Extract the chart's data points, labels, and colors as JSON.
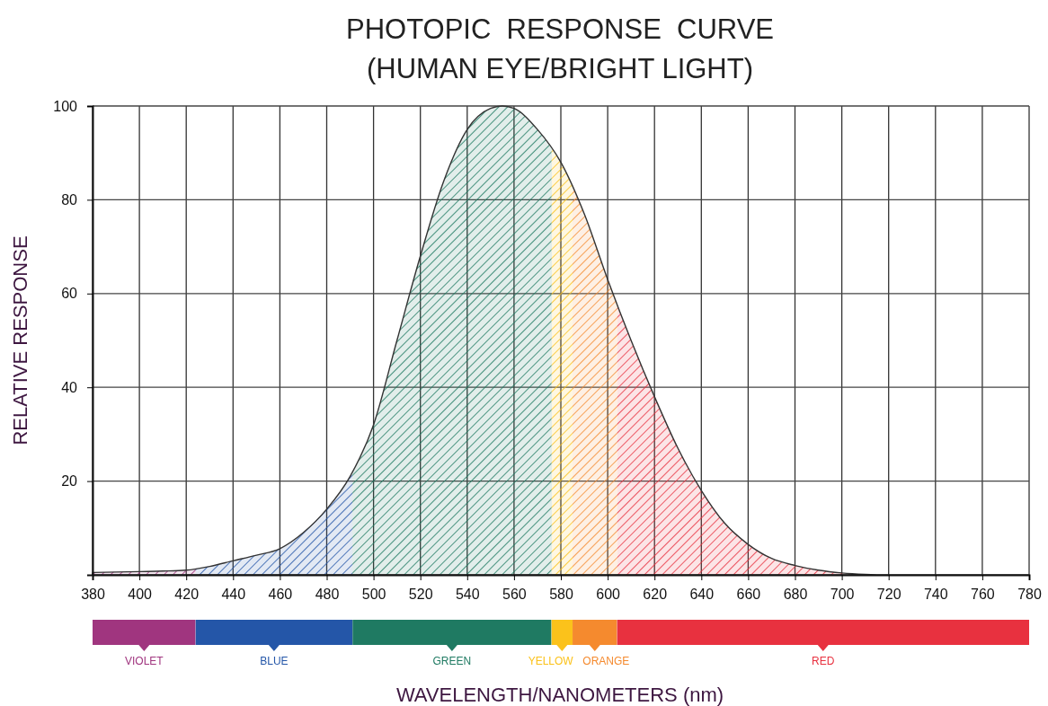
{
  "chart_data": {
    "type": "area",
    "title": "PHOTOPIC  RESPONSE  CURVE",
    "subtitle": "(HUMAN EYE/BRIGHT LIGHT)",
    "xlabel": "WAVELENGTH/NANOMETERS (nm)",
    "ylabel": "RELATIVE RESPONSE",
    "x": [
      380,
      390,
      400,
      410,
      420,
      430,
      440,
      450,
      460,
      470,
      480,
      490,
      500,
      510,
      520,
      530,
      540,
      550,
      555,
      560,
      570,
      580,
      590,
      600,
      610,
      620,
      630,
      640,
      650,
      660,
      670,
      680,
      690,
      700,
      710,
      720,
      740,
      760,
      780
    ],
    "series": [
      {
        "color": "#333333",
        "values": [
          0.5,
          0.6,
          0.7,
          0.8,
          1,
          1.8,
          3,
          4.2,
          5.6,
          9,
          14,
          21,
          32,
          50,
          68,
          84,
          95,
          99.5,
          100,
          99.5,
          95,
          88,
          77,
          63,
          50,
          38,
          27,
          18,
          11,
          6.5,
          3.5,
          2,
          1,
          0.4,
          0.1,
          0,
          0,
          0,
          0
        ]
      }
    ],
    "xlim": [
      380,
      780
    ],
    "xticks": [
      380,
      400,
      420,
      440,
      460,
      480,
      500,
      520,
      540,
      560,
      580,
      600,
      620,
      640,
      660,
      680,
      700,
      720,
      740,
      760,
      780
    ],
    "ylim": [
      0,
      100
    ],
    "yticks": [
      20,
      40,
      60,
      80,
      100
    ],
    "grid": true,
    "marker": "none",
    "line_style": "solid",
    "bands": [
      {
        "axis": "x",
        "from": 380,
        "to": 424,
        "label": "VIOLET",
        "color": "#a0357f"
      },
      {
        "axis": "x",
        "from": 424,
        "to": 491,
        "label": "BLUE",
        "color": "#2456a8"
      },
      {
        "axis": "x",
        "from": 491,
        "to": 576,
        "label": "GREEN",
        "color": "#1f7a62"
      },
      {
        "axis": "x",
        "from": 576,
        "to": 585,
        "label": "YELLOW",
        "color": "#fbc21b"
      },
      {
        "axis": "x",
        "from": 585,
        "to": 604,
        "label": "ORANGE",
        "color": "#f58a2e"
      },
      {
        "axis": "x",
        "from": 604,
        "to": 780,
        "label": "RED",
        "color": "#e8313f"
      }
    ]
  }
}
